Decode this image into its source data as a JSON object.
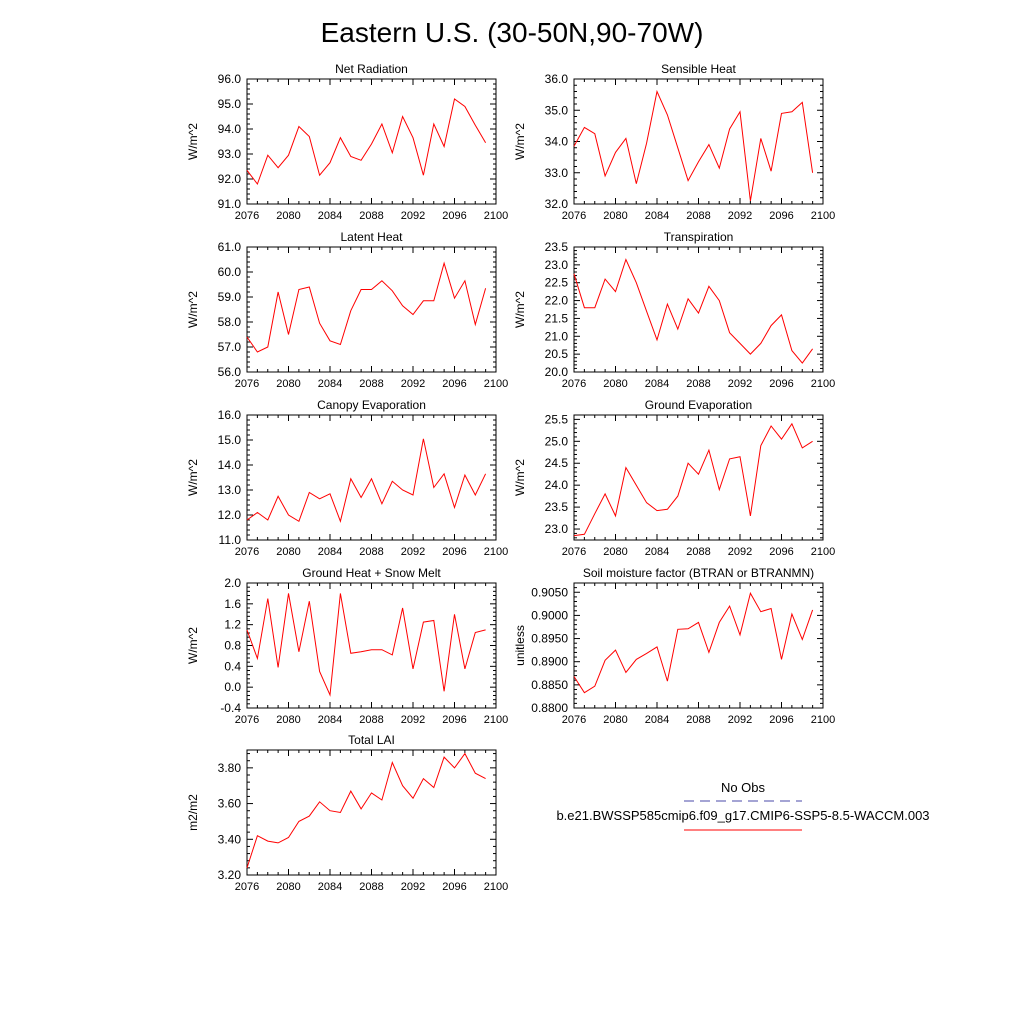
{
  "title": "Eastern U.S. (30-50N,90-70W)",
  "colors": {
    "model": "#ff0000",
    "obs": "#4a4aa8",
    "axis": "#000000"
  },
  "legend": {
    "obs_label": "No Obs",
    "model_label": "b.e21.BWSSP585cmip6.f09_g17.CMIP6-SSP5-8.5-WACCM.003"
  },
  "chart_data": [
    {
      "type": "line",
      "title": "Net Radiation",
      "xlabel": "",
      "ylabel": "W/m^2",
      "xlim": [
        2076,
        2100
      ],
      "ylim": [
        91.0,
        96.0
      ],
      "xticks": [
        2076,
        2080,
        2084,
        2088,
        2092,
        2096,
        2100
      ],
      "xtick_labels": [
        "2076",
        "2080",
        "2084",
        "2088",
        "2092",
        "2096",
        "2100"
      ],
      "yticks": [
        91.0,
        92.0,
        93.0,
        94.0,
        95.0,
        96.0
      ],
      "ytick_labels": [
        "91.0",
        "92.0",
        "93.0",
        "94.0",
        "95.0",
        "96.0"
      ],
      "x": [
        2076,
        2077,
        2078,
        2079,
        2080,
        2081,
        2082,
        2083,
        2084,
        2085,
        2086,
        2087,
        2088,
        2089,
        2090,
        2091,
        2092,
        2093,
        2094,
        2095,
        2096,
        2097,
        2098,
        2099
      ],
      "series": [
        {
          "values": [
            92.35,
            91.8,
            92.95,
            92.45,
            92.95,
            94.1,
            93.7,
            92.15,
            92.65,
            93.65,
            92.9,
            92.75,
            93.4,
            94.2,
            93.05,
            94.5,
            93.65,
            92.15,
            94.2,
            93.3,
            95.2,
            94.9,
            94.15,
            93.45
          ]
        }
      ]
    },
    {
      "type": "line",
      "title": "Sensible Heat",
      "xlabel": "",
      "ylabel": "W/m^2",
      "xlim": [
        2076,
        2100
      ],
      "ylim": [
        32.0,
        36.0
      ],
      "xticks": [
        2076,
        2080,
        2084,
        2088,
        2092,
        2096,
        2100
      ],
      "xtick_labels": [
        "2076",
        "2080",
        "2084",
        "2088",
        "2092",
        "2096",
        "2100"
      ],
      "yticks": [
        32.0,
        33.0,
        34.0,
        35.0,
        36.0
      ],
      "ytick_labels": [
        "32.0",
        "33.0",
        "34.0",
        "35.0",
        "36.0"
      ],
      "x": [
        2076,
        2077,
        2078,
        2079,
        2080,
        2081,
        2082,
        2083,
        2084,
        2085,
        2086,
        2087,
        2088,
        2089,
        2090,
        2091,
        2092,
        2093,
        2094,
        2095,
        2096,
        2097,
        2098,
        2099
      ],
      "series": [
        {
          "values": [
            33.85,
            34.45,
            34.25,
            32.9,
            33.65,
            34.1,
            32.65,
            33.95,
            35.6,
            34.85,
            33.8,
            32.75,
            33.35,
            33.9,
            33.15,
            34.4,
            34.95,
            32.1,
            34.1,
            33.05,
            34.9,
            34.95,
            35.25,
            33.0
          ]
        }
      ]
    },
    {
      "type": "line",
      "title": "Latent Heat",
      "xlabel": "",
      "ylabel": "W/m^2",
      "xlim": [
        2076,
        2100
      ],
      "ylim": [
        56.0,
        61.0
      ],
      "xticks": [
        2076,
        2080,
        2084,
        2088,
        2092,
        2096,
        2100
      ],
      "xtick_labels": [
        "2076",
        "2080",
        "2084",
        "2088",
        "2092",
        "2096",
        "2100"
      ],
      "yticks": [
        56.0,
        57.0,
        58.0,
        59.0,
        60.0,
        61.0
      ],
      "ytick_labels": [
        "56.0",
        "57.0",
        "58.0",
        "59.0",
        "60.0",
        "61.0"
      ],
      "x": [
        2076,
        2077,
        2078,
        2079,
        2080,
        2081,
        2082,
        2083,
        2084,
        2085,
        2086,
        2087,
        2088,
        2089,
        2090,
        2091,
        2092,
        2093,
        2094,
        2095,
        2096,
        2097,
        2098,
        2099
      ],
      "series": [
        {
          "values": [
            57.4,
            56.8,
            57.0,
            59.2,
            57.5,
            59.3,
            59.4,
            57.95,
            57.25,
            57.1,
            58.45,
            59.3,
            59.3,
            59.65,
            59.25,
            58.65,
            58.3,
            58.85,
            58.85,
            60.35,
            58.95,
            59.65,
            57.9,
            59.35
          ]
        }
      ]
    },
    {
      "type": "line",
      "title": "Transpiration",
      "xlabel": "",
      "ylabel": "W/m^2",
      "xlim": [
        2076,
        2100
      ],
      "ylim": [
        20.0,
        23.5
      ],
      "xticks": [
        2076,
        2080,
        2084,
        2088,
        2092,
        2096,
        2100
      ],
      "xtick_labels": [
        "2076",
        "2080",
        "2084",
        "2088",
        "2092",
        "2096",
        "2100"
      ],
      "yticks": [
        20.0,
        20.5,
        21.0,
        21.5,
        22.0,
        22.5,
        23.0,
        23.5
      ],
      "ytick_labels": [
        "20.0",
        "20.5",
        "21.0",
        "21.5",
        "22.0",
        "22.5",
        "23.0",
        "23.5"
      ],
      "x": [
        2076,
        2077,
        2078,
        2079,
        2080,
        2081,
        2082,
        2083,
        2084,
        2085,
        2086,
        2087,
        2088,
        2089,
        2090,
        2091,
        2092,
        2093,
        2094,
        2095,
        2096,
        2097,
        2098,
        2099
      ],
      "series": [
        {
          "values": [
            22.75,
            21.8,
            21.8,
            22.6,
            22.25,
            23.15,
            22.5,
            21.7,
            20.9,
            21.9,
            21.2,
            22.05,
            21.65,
            22.4,
            22.0,
            21.1,
            20.8,
            20.5,
            20.8,
            21.3,
            21.6,
            20.6,
            20.25,
            20.65
          ]
        }
      ]
    },
    {
      "type": "line",
      "title": "Canopy Evaporation",
      "xlabel": "",
      "ylabel": "W/m^2",
      "xlim": [
        2076,
        2100
      ],
      "ylim": [
        11.0,
        16.0
      ],
      "xticks": [
        2076,
        2080,
        2084,
        2088,
        2092,
        2096,
        2100
      ],
      "xtick_labels": [
        "2076",
        "2080",
        "2084",
        "2088",
        "2092",
        "2096",
        "2100"
      ],
      "yticks": [
        11.0,
        12.0,
        13.0,
        14.0,
        15.0,
        16.0
      ],
      "ytick_labels": [
        "11.0",
        "12.0",
        "13.0",
        "14.0",
        "15.0",
        "16.0"
      ],
      "x": [
        2076,
        2077,
        2078,
        2079,
        2080,
        2081,
        2082,
        2083,
        2084,
        2085,
        2086,
        2087,
        2088,
        2089,
        2090,
        2091,
        2092,
        2093,
        2094,
        2095,
        2096,
        2097,
        2098,
        2099
      ],
      "series": [
        {
          "values": [
            11.8,
            12.1,
            11.8,
            12.75,
            12.0,
            11.75,
            12.9,
            12.65,
            12.85,
            11.75,
            13.45,
            12.7,
            13.45,
            12.45,
            13.35,
            13.0,
            12.8,
            15.05,
            13.1,
            13.65,
            12.3,
            13.6,
            12.8,
            13.65
          ]
        }
      ]
    },
    {
      "type": "line",
      "title": "Ground Evaporation",
      "xlabel": "",
      "ylabel": "W/m^2",
      "xlim": [
        2076,
        2100
      ],
      "ylim": [
        22.75,
        25.6
      ],
      "xticks": [
        2076,
        2080,
        2084,
        2088,
        2092,
        2096,
        2100
      ],
      "xtick_labels": [
        "2076",
        "2080",
        "2084",
        "2088",
        "2092",
        "2096",
        "2100"
      ],
      "yticks": [
        23.0,
        23.5,
        24.0,
        24.5,
        25.0,
        25.5
      ],
      "ytick_labels": [
        "23.0",
        "23.5",
        "24.0",
        "24.5",
        "25.0",
        "25.5"
      ],
      "x": [
        2076,
        2077,
        2078,
        2079,
        2080,
        2081,
        2082,
        2083,
        2084,
        2085,
        2086,
        2087,
        2088,
        2089,
        2090,
        2091,
        2092,
        2093,
        2094,
        2095,
        2096,
        2097,
        2098,
        2099
      ],
      "series": [
        {
          "values": [
            22.85,
            22.88,
            23.35,
            23.8,
            23.3,
            24.4,
            24.0,
            23.6,
            23.42,
            23.45,
            23.75,
            24.5,
            24.25,
            24.8,
            23.9,
            24.6,
            24.65,
            23.3,
            24.9,
            25.35,
            25.05,
            25.4,
            24.85,
            25.0
          ]
        }
      ]
    },
    {
      "type": "line",
      "title": "Ground Heat + Snow Melt",
      "xlabel": "",
      "ylabel": "W/m^2",
      "xlim": [
        2076,
        2100
      ],
      "ylim": [
        -0.4,
        2.0
      ],
      "xticks": [
        2076,
        2080,
        2084,
        2088,
        2092,
        2096,
        2100
      ],
      "xtick_labels": [
        "2076",
        "2080",
        "2084",
        "2088",
        "2092",
        "2096",
        "2100"
      ],
      "yticks": [
        -0.4,
        0.0,
        0.4,
        0.8,
        1.2,
        1.6,
        2.0
      ],
      "ytick_labels": [
        "-0.4",
        "0.0",
        "0.4",
        "0.8",
        "1.2",
        "1.6",
        "2.0"
      ],
      "x": [
        2076,
        2077,
        2078,
        2079,
        2080,
        2081,
        2082,
        2083,
        2084,
        2085,
        2086,
        2087,
        2088,
        2089,
        2090,
        2091,
        2092,
        2093,
        2094,
        2095,
        2096,
        2097,
        2098,
        2099
      ],
      "series": [
        {
          "values": [
            1.1,
            0.55,
            1.7,
            0.38,
            1.8,
            0.68,
            1.65,
            0.3,
            -0.15,
            1.8,
            0.65,
            0.68,
            0.72,
            0.72,
            0.62,
            1.52,
            0.35,
            1.25,
            1.28,
            -0.08,
            1.4,
            0.35,
            1.05,
            1.1
          ]
        }
      ]
    },
    {
      "type": "line",
      "title": "Soil moisture factor (BTRAN or BTRANMN)",
      "xlabel": "",
      "ylabel": "unitless",
      "xlim": [
        2076,
        2100
      ],
      "ylim": [
        0.88,
        0.907
      ],
      "xticks": [
        2076,
        2080,
        2084,
        2088,
        2092,
        2096,
        2100
      ],
      "xtick_labels": [
        "2076",
        "2080",
        "2084",
        "2088",
        "2092",
        "2096",
        "2100"
      ],
      "yticks": [
        0.88,
        0.885,
        0.89,
        0.895,
        0.9,
        0.905
      ],
      "ytick_labels": [
        "0.8800",
        "0.8850",
        "0.8900",
        "0.8950",
        "0.9000",
        "0.9050"
      ],
      "x": [
        2076,
        2077,
        2078,
        2079,
        2080,
        2081,
        2082,
        2083,
        2084,
        2085,
        2086,
        2087,
        2088,
        2089,
        2090,
        2091,
        2092,
        2093,
        2094,
        2095,
        2096,
        2097,
        2098,
        2099
      ],
      "series": [
        {
          "values": [
            0.8868,
            0.8833,
            0.8847,
            0.8903,
            0.8925,
            0.8877,
            0.8905,
            0.8918,
            0.8932,
            0.8858,
            0.897,
            0.8971,
            0.8985,
            0.892,
            0.8985,
            0.902,
            0.8958,
            0.9048,
            0.9008,
            0.9015,
            0.8905,
            0.9003,
            0.8948,
            0.9012
          ]
        }
      ]
    },
    {
      "type": "line",
      "title": "Total LAI",
      "xlabel": "",
      "ylabel": "m2/m2",
      "xlim": [
        2076,
        2100
      ],
      "ylim": [
        3.2,
        3.9
      ],
      "xticks": [
        2076,
        2080,
        2084,
        2088,
        2092,
        2096,
        2100
      ],
      "xtick_labels": [
        "2076",
        "2080",
        "2084",
        "2088",
        "2092",
        "2096",
        "2100"
      ],
      "yticks": [
        3.2,
        3.4,
        3.6,
        3.8
      ],
      "ytick_labels": [
        "3.20",
        "3.40",
        "3.60",
        "3.80"
      ],
      "x": [
        2076,
        2077,
        2078,
        2079,
        2080,
        2081,
        2082,
        2083,
        2084,
        2085,
        2086,
        2087,
        2088,
        2089,
        2090,
        2091,
        2092,
        2093,
        2094,
        2095,
        2096,
        2097,
        2098,
        2099
      ],
      "series": [
        {
          "values": [
            3.24,
            3.42,
            3.39,
            3.38,
            3.41,
            3.5,
            3.53,
            3.61,
            3.56,
            3.55,
            3.67,
            3.57,
            3.66,
            3.62,
            3.83,
            3.7,
            3.63,
            3.74,
            3.69,
            3.86,
            3.8,
            3.88,
            3.77,
            3.74
          ]
        }
      ]
    }
  ]
}
